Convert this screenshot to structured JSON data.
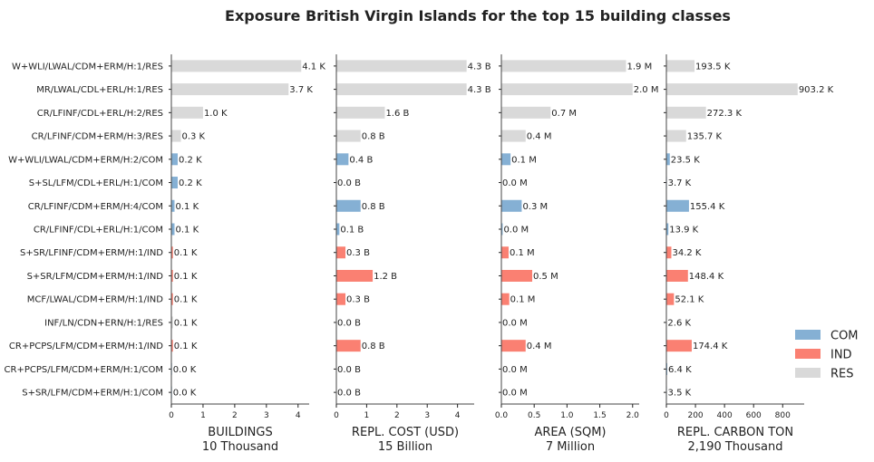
{
  "title": "Exposure British Virgin Islands for the top 15 building classes",
  "colors": {
    "COM": "#85b0d4",
    "IND": "#fa8072",
    "RES": "#d9d9d9"
  },
  "chart_data": {
    "type": "bar",
    "orientation": "horizontal",
    "title": "Exposure British Virgin Islands for the top 15 building classes",
    "categories": [
      "W+WLI/LWAL/CDM+ERM/H:1/RES",
      "MR/LWAL/CDL+ERL/H:1/RES",
      "CR/LFINF/CDL+ERL/H:2/RES",
      "CR/LFINF/CDM+ERM/H:3/RES",
      "W+WLI/LWAL/CDM+ERM/H:2/COM",
      "S+SL/LFM/CDL+ERL/H:1/COM",
      "CR/LFINF/CDM+ERM/H:4/COM",
      "CR/LFINF/CDL+ERL/H:1/COM",
      "S+SR/LFINF/CDM+ERM/H:1/IND",
      "S+SR/LFM/CDM+ERM/H:1/IND",
      "MCF/LWAL/CDM+ERM/H:1/IND",
      "INF/LN/CDN+ERN/H:1/RES",
      "CR+PCPS/LFM/CDM+ERM/H:1/IND",
      "CR+PCPS/LFM/CDM+ERM/H:1/COM",
      "S+SR/LFM/CDM+ERM/H:1/COM"
    ],
    "occupancy": [
      "RES",
      "RES",
      "RES",
      "RES",
      "COM",
      "COM",
      "COM",
      "COM",
      "IND",
      "IND",
      "IND",
      "RES",
      "IND",
      "COM",
      "COM"
    ],
    "legend": {
      "entries": [
        "COM",
        "IND",
        "RES"
      ],
      "placement": "lower-right"
    },
    "panels": [
      {
        "xlabel": "BUILDINGS",
        "xsub": "10 Thousand",
        "xlim": [
          0,
          4.35
        ],
        "ticks": [
          0,
          1,
          2,
          3,
          4
        ],
        "tick_labels": [
          "0",
          "1",
          "2",
          "3",
          "4"
        ],
        "values": [
          4.1,
          3.7,
          1.0,
          0.3,
          0.2,
          0.2,
          0.1,
          0.1,
          0.05,
          0.05,
          0.05,
          0.05,
          0.05,
          0.02,
          0.02
        ],
        "labels": [
          "4.1 K",
          "3.7 K",
          "1.0 K",
          "0.3 K",
          "0.2 K",
          "0.2 K",
          "0.1 K",
          "0.1 K",
          "0.1 K",
          "0.1 K",
          "0.1 K",
          "0.1 K",
          "0.1 K",
          "0.0 K",
          "0.0 K"
        ]
      },
      {
        "xlabel": "REPL. COST (USD)",
        "xsub": "15 Billion",
        "xlim": [
          0,
          4.55
        ],
        "ticks": [
          0,
          1,
          2,
          3,
          4
        ],
        "tick_labels": [
          "0",
          "1",
          "2",
          "3",
          "4"
        ],
        "values": [
          4.3,
          4.3,
          1.6,
          0.8,
          0.4,
          0.0,
          0.8,
          0.1,
          0.3,
          1.2,
          0.3,
          0.0,
          0.8,
          0.0,
          0.0
        ],
        "labels": [
          "4.3 B",
          "4.3 B",
          "1.6 B",
          "0.8 B",
          "0.4 B",
          "0.0 B",
          "0.8 B",
          "0.1 B",
          "0.3 B",
          "1.2 B",
          "0.3 B",
          "0.0 B",
          "0.8 B",
          "0.0 B",
          "0.0 B"
        ]
      },
      {
        "xlabel": "AREA (SQM)",
        "xsub": "7 Million",
        "xlim": [
          0,
          2.1
        ],
        "ticks": [
          0,
          0.5,
          1.0,
          1.5,
          2.0
        ],
        "tick_labels": [
          "0.0",
          "0.5",
          "1.0",
          "1.5",
          "2.0"
        ],
        "values": [
          1.9,
          2.0,
          0.75,
          0.37,
          0.14,
          0.0,
          0.31,
          0.02,
          0.11,
          0.47,
          0.12,
          0.0,
          0.37,
          0.0,
          0.0
        ],
        "labels": [
          "1.9 M",
          "2.0 M",
          "0.7 M",
          "0.4 M",
          "0.1 M",
          "0.0 M",
          "0.3 M",
          "0.0 M",
          "0.1 M",
          "0.5 M",
          "0.1 M",
          "0.0 M",
          "0.4 M",
          "0.0 M",
          "0.0 M"
        ]
      },
      {
        "xlabel": "REPL. CARBON TON",
        "xsub": "2,190 Thousand",
        "xlim": [
          0,
          948
        ],
        "ticks": [
          0,
          200,
          400,
          600,
          800
        ],
        "tick_labels": [
          "0",
          "200",
          "400",
          "600",
          "800"
        ],
        "values": [
          193.5,
          903.2,
          272.3,
          135.7,
          23.5,
          3.7,
          155.4,
          13.9,
          34.2,
          148.4,
          52.1,
          2.6,
          174.4,
          6.4,
          3.5
        ],
        "labels": [
          "193.5 K",
          "903.2 K",
          "272.3 K",
          "135.7 K",
          "23.5 K",
          "3.7 K",
          "155.4 K",
          "13.9 K",
          "34.2 K",
          "148.4 K",
          "52.1 K",
          "2.6 K",
          "174.4 K",
          "6.4 K",
          "3.5 K"
        ]
      }
    ]
  }
}
